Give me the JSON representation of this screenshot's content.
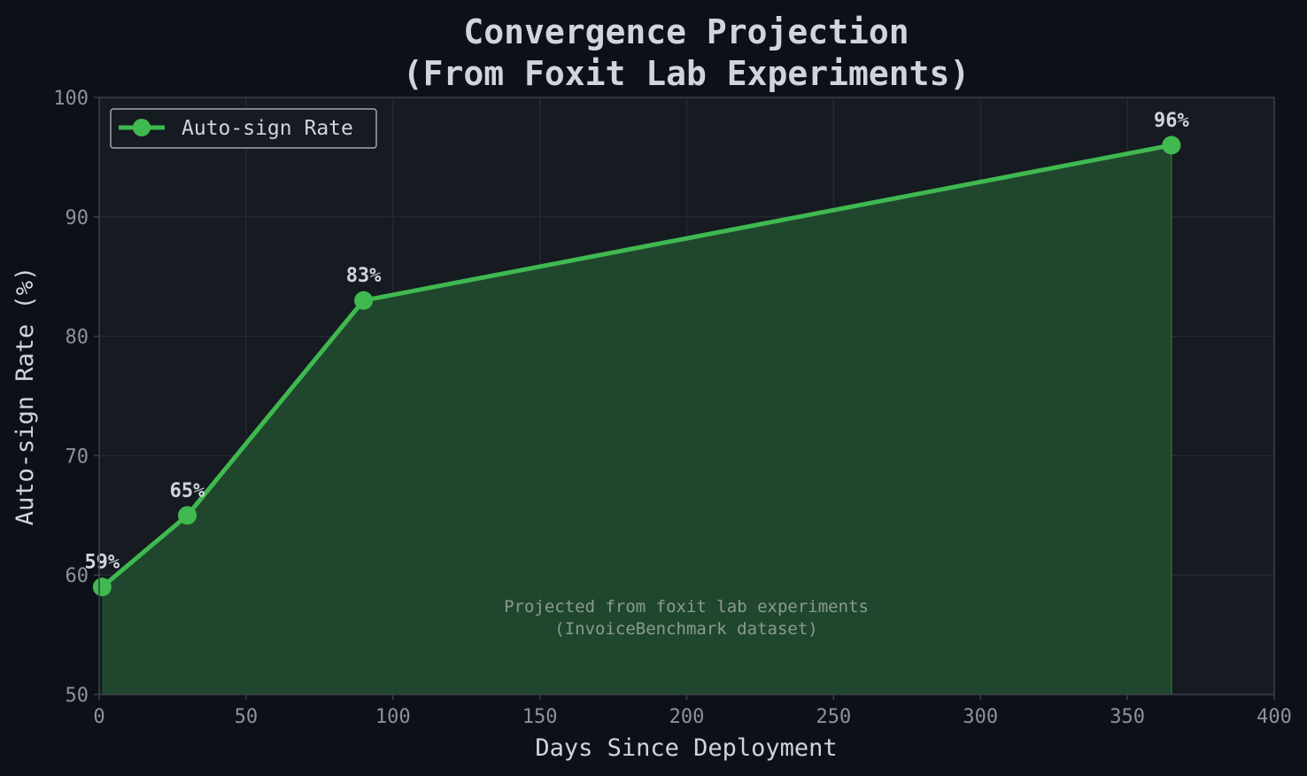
{
  "chart_data": {
    "type": "area",
    "title_lines": [
      "Convergence Projection",
      "(From Foxit Lab Experiments)"
    ],
    "xlabel": "Days Since Deployment",
    "ylabel": "Auto-sign Rate (%)",
    "xlim": [
      0,
      400
    ],
    "ylim": [
      50,
      100
    ],
    "xticks": [
      0,
      50,
      100,
      150,
      200,
      250,
      300,
      350,
      400
    ],
    "yticks": [
      50,
      60,
      70,
      80,
      90,
      100
    ],
    "grid": true,
    "legend_position": "top-left",
    "series": [
      {
        "name": "Auto-sign Rate",
        "x": [
          1,
          30,
          90,
          365
        ],
        "y": [
          59,
          65,
          83,
          96
        ],
        "labels": [
          "59%",
          "65%",
          "83%",
          "96%"
        ],
        "color": "#3fb950",
        "fill_color": "#214a2f"
      }
    ],
    "annotation_lines": [
      "Projected from foxit lab experiments",
      "(InvoiceBenchmark dataset)"
    ]
  },
  "colors": {
    "background": "#0d1017",
    "plot_background": "#161a21",
    "grid": "#262b33",
    "spine": "#3a3f47"
  }
}
